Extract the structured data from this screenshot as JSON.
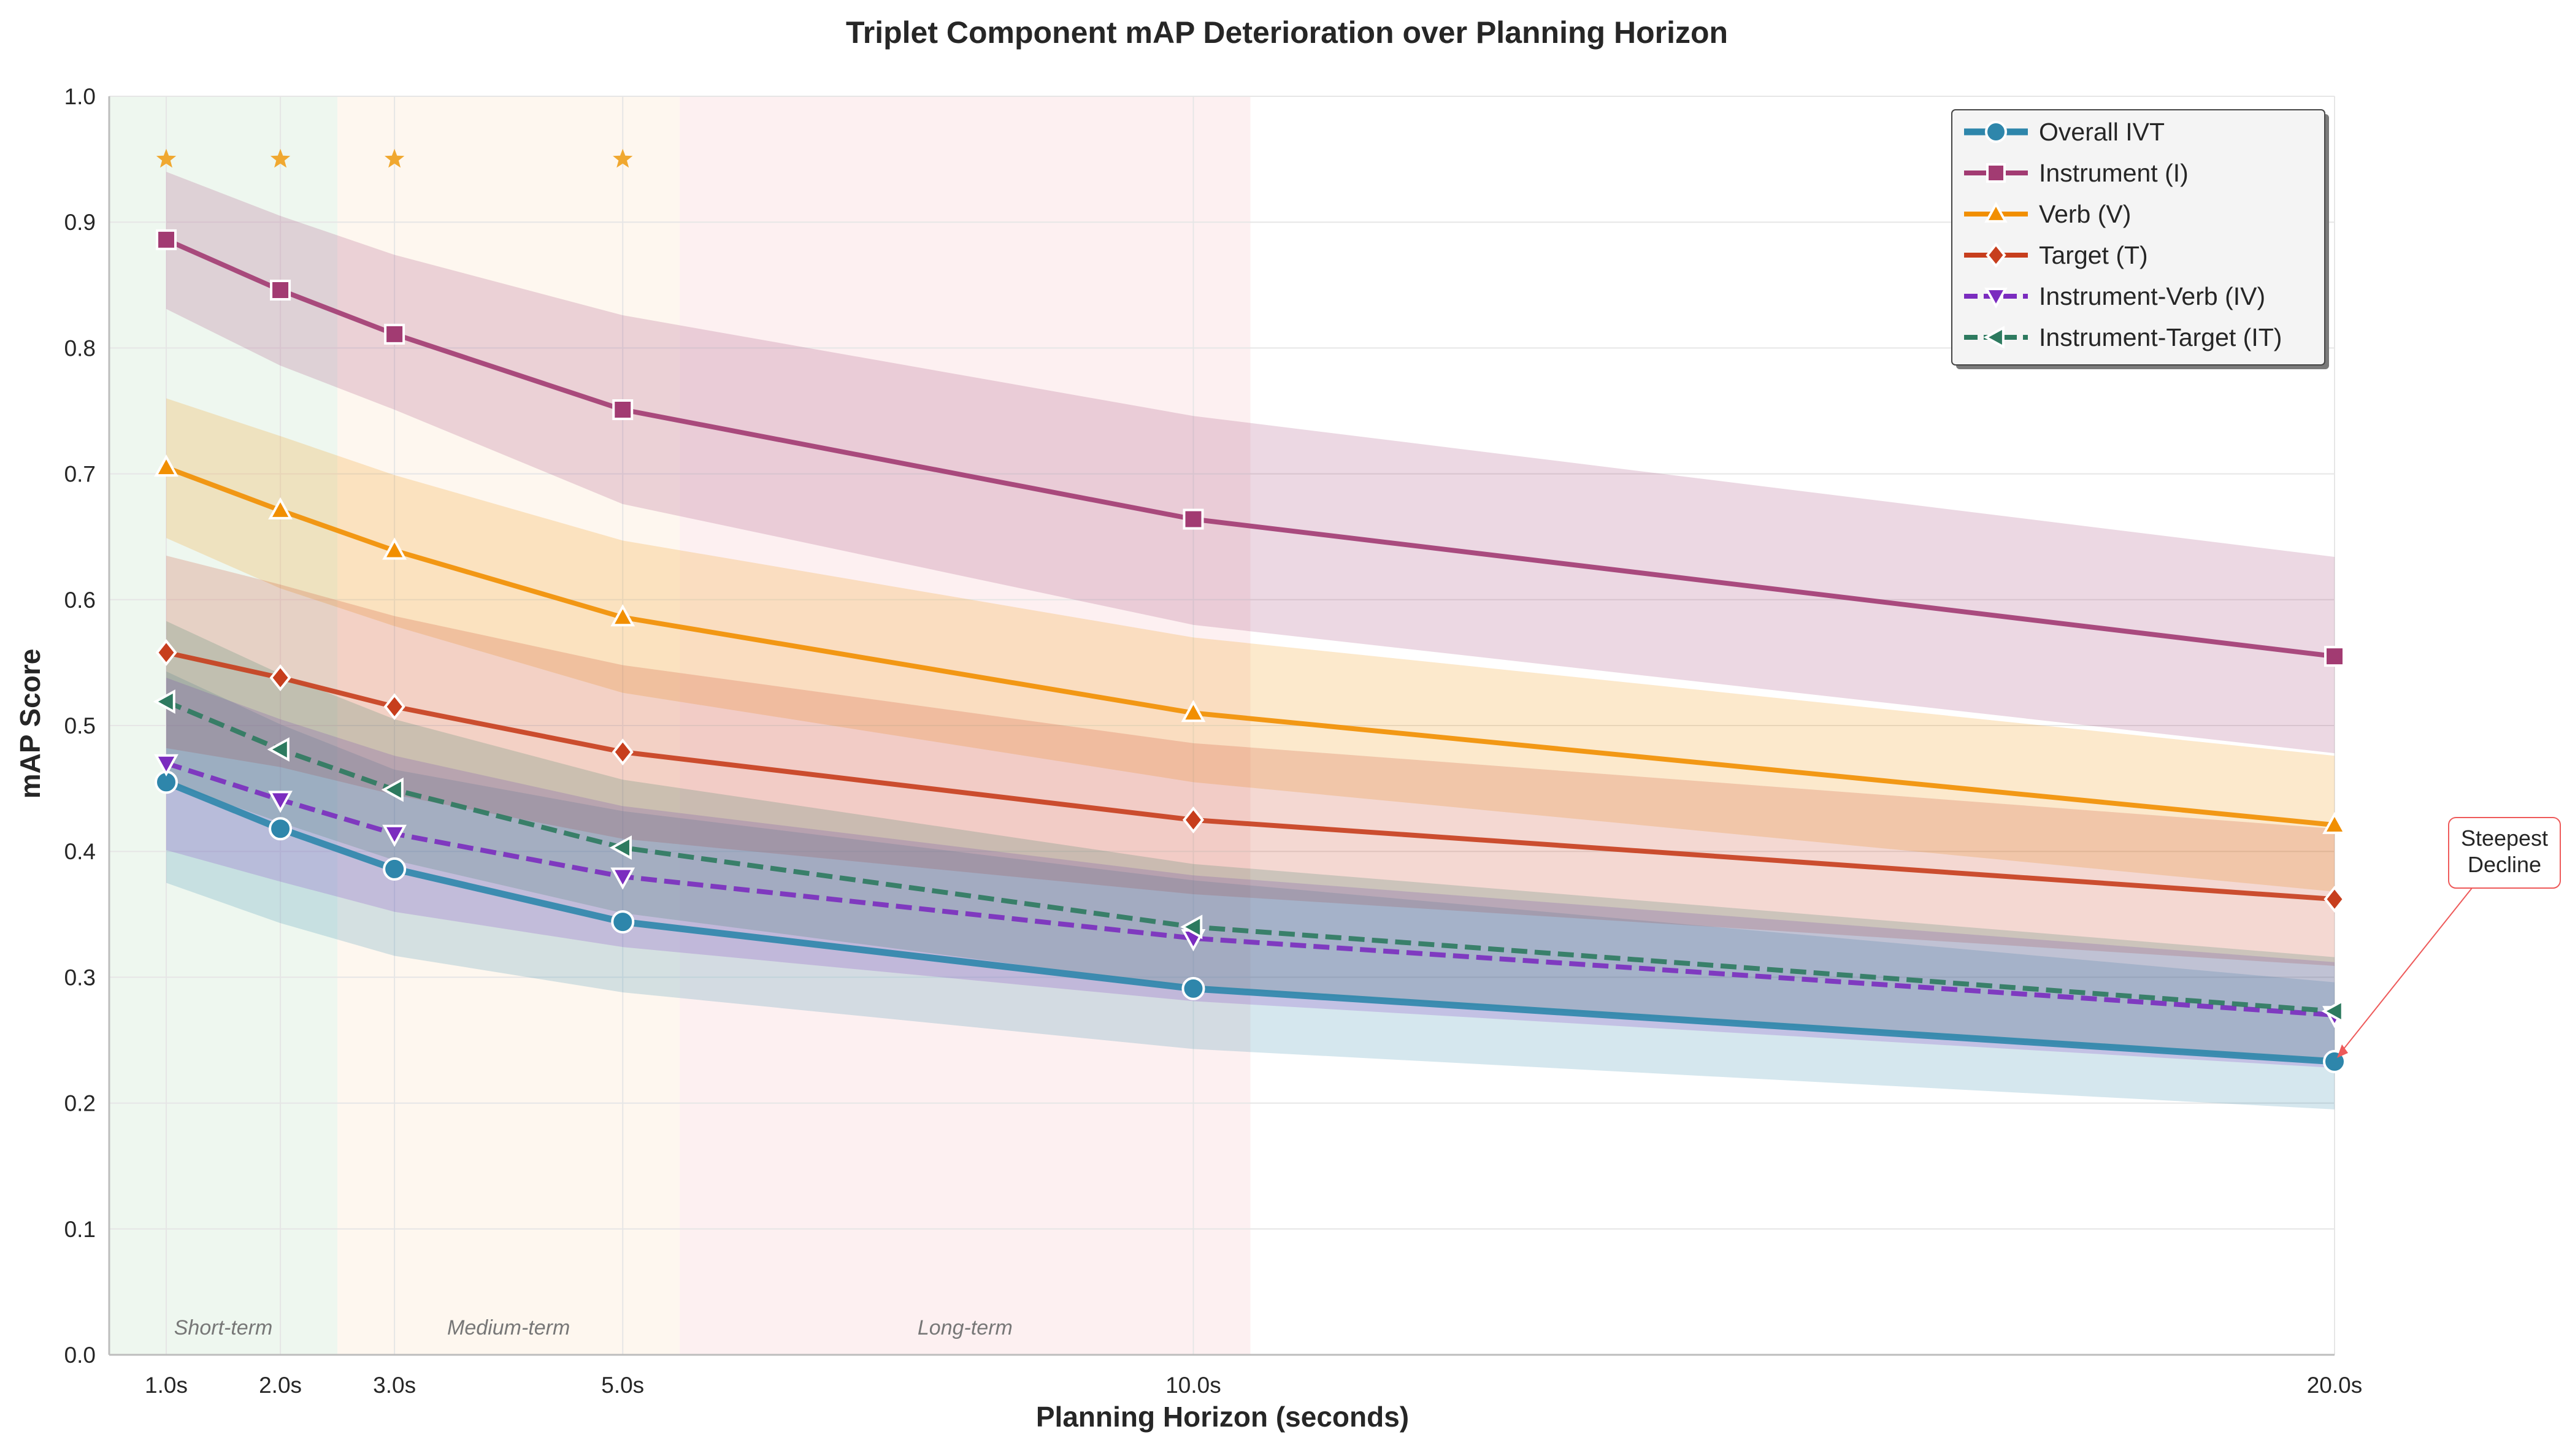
{
  "chart_data": {
    "type": "line",
    "title": "Triplet Component mAP Deterioration over Planning Horizon",
    "xlabel": "Planning Horizon (seconds)",
    "ylabel": "mAP Score",
    "x": [
      1,
      2,
      3,
      5,
      10,
      20
    ],
    "x_tick_labels": [
      "1.0s",
      "2.0s",
      "3.0s",
      "5.0s",
      "10.0s",
      "20.0s"
    ],
    "xlim": [
      0.5,
      20
    ],
    "ylim": [
      0,
      1.0
    ],
    "y_ticks": [
      0.0,
      0.1,
      0.2,
      0.3,
      0.4,
      0.5,
      0.6,
      0.7,
      0.8,
      0.9,
      1.0
    ],
    "y_tick_labels": [
      "0.0",
      "0.1",
      "0.2",
      "0.3",
      "0.4",
      "0.5",
      "0.6",
      "0.7",
      "0.8",
      "0.9",
      "1.0"
    ],
    "grid": true,
    "legend_position": "top-right",
    "regions": [
      {
        "label": "Short-term",
        "x_start": 0.5,
        "x_end": 2.5,
        "color": "#e5f2e7"
      },
      {
        "label": "Medium-term",
        "x_start": 2.5,
        "x_end": 5.5,
        "color": "#fdf3e6"
      },
      {
        "label": "Long-term",
        "x_start": 5.5,
        "x_end": 10.5,
        "color": "#fce8ea"
      }
    ],
    "series": [
      {
        "name": "Overall IVT",
        "color": "#2e86ab",
        "marker": "circle",
        "dash": false,
        "values": [
          0.455,
          0.418,
          0.386,
          0.344,
          0.291,
          0.233
        ],
        "band_lower": [
          0.375,
          0.343,
          0.317,
          0.288,
          0.243,
          0.195
        ],
        "band_upper": [
          0.543,
          0.501,
          0.465,
          0.432,
          0.377,
          0.296
        ]
      },
      {
        "name": "Instrument (I)",
        "color": "#a23b72",
        "marker": "square",
        "dash": false,
        "values": [
          0.886,
          0.846,
          0.811,
          0.751,
          0.664,
          0.555
        ],
        "band_lower": [
          0.831,
          0.786,
          0.751,
          0.676,
          0.58,
          0.478
        ],
        "band_upper": [
          0.94,
          0.905,
          0.874,
          0.826,
          0.746,
          0.634
        ]
      },
      {
        "name": "Verb (V)",
        "color": "#f18f01",
        "marker": "triangle-up",
        "dash": false,
        "values": [
          0.705,
          0.671,
          0.639,
          0.586,
          0.51,
          0.421
        ],
        "band_lower": [
          0.649,
          0.609,
          0.579,
          0.526,
          0.455,
          0.368
        ],
        "band_upper": [
          0.76,
          0.73,
          0.699,
          0.647,
          0.57,
          0.476
        ]
      },
      {
        "name": "Target (T)",
        "color": "#c73e1d",
        "marker": "diamond",
        "dash": false,
        "values": [
          0.558,
          0.538,
          0.515,
          0.479,
          0.425,
          0.362
        ],
        "band_lower": [
          0.482,
          0.467,
          0.445,
          0.41,
          0.366,
          0.309
        ],
        "band_upper": [
          0.635,
          0.612,
          0.587,
          0.548,
          0.486,
          0.418
        ]
      },
      {
        "name": "Instrument-Verb (IV)",
        "color": "#7b2cbf",
        "marker": "triangle-down",
        "dash": true,
        "values": [
          0.47,
          0.441,
          0.414,
          0.38,
          0.331,
          0.27
        ],
        "band_lower": [
          0.401,
          0.376,
          0.352,
          0.324,
          0.281,
          0.228
        ],
        "band_upper": [
          0.538,
          0.505,
          0.476,
          0.436,
          0.381,
          0.312
        ]
      },
      {
        "name": "Instrument-Target (IT)",
        "color": "#2d7a5f",
        "marker": "triangle-left",
        "dash": true,
        "values": [
          0.519,
          0.481,
          0.449,
          0.403,
          0.34,
          0.273
        ],
        "band_lower": [
          0.455,
          0.423,
          0.393,
          0.351,
          0.292,
          0.232
        ],
        "band_upper": [
          0.583,
          0.541,
          0.505,
          0.457,
          0.39,
          0.316
        ]
      }
    ],
    "star_markers": {
      "x": [
        1,
        2,
        3,
        5
      ],
      "y": 0.95,
      "color": "#f0a830"
    },
    "annotation": {
      "text_lines": [
        "Steepest",
        "Decline"
      ],
      "target_x": 20,
      "target_y": 0.233
    }
  }
}
